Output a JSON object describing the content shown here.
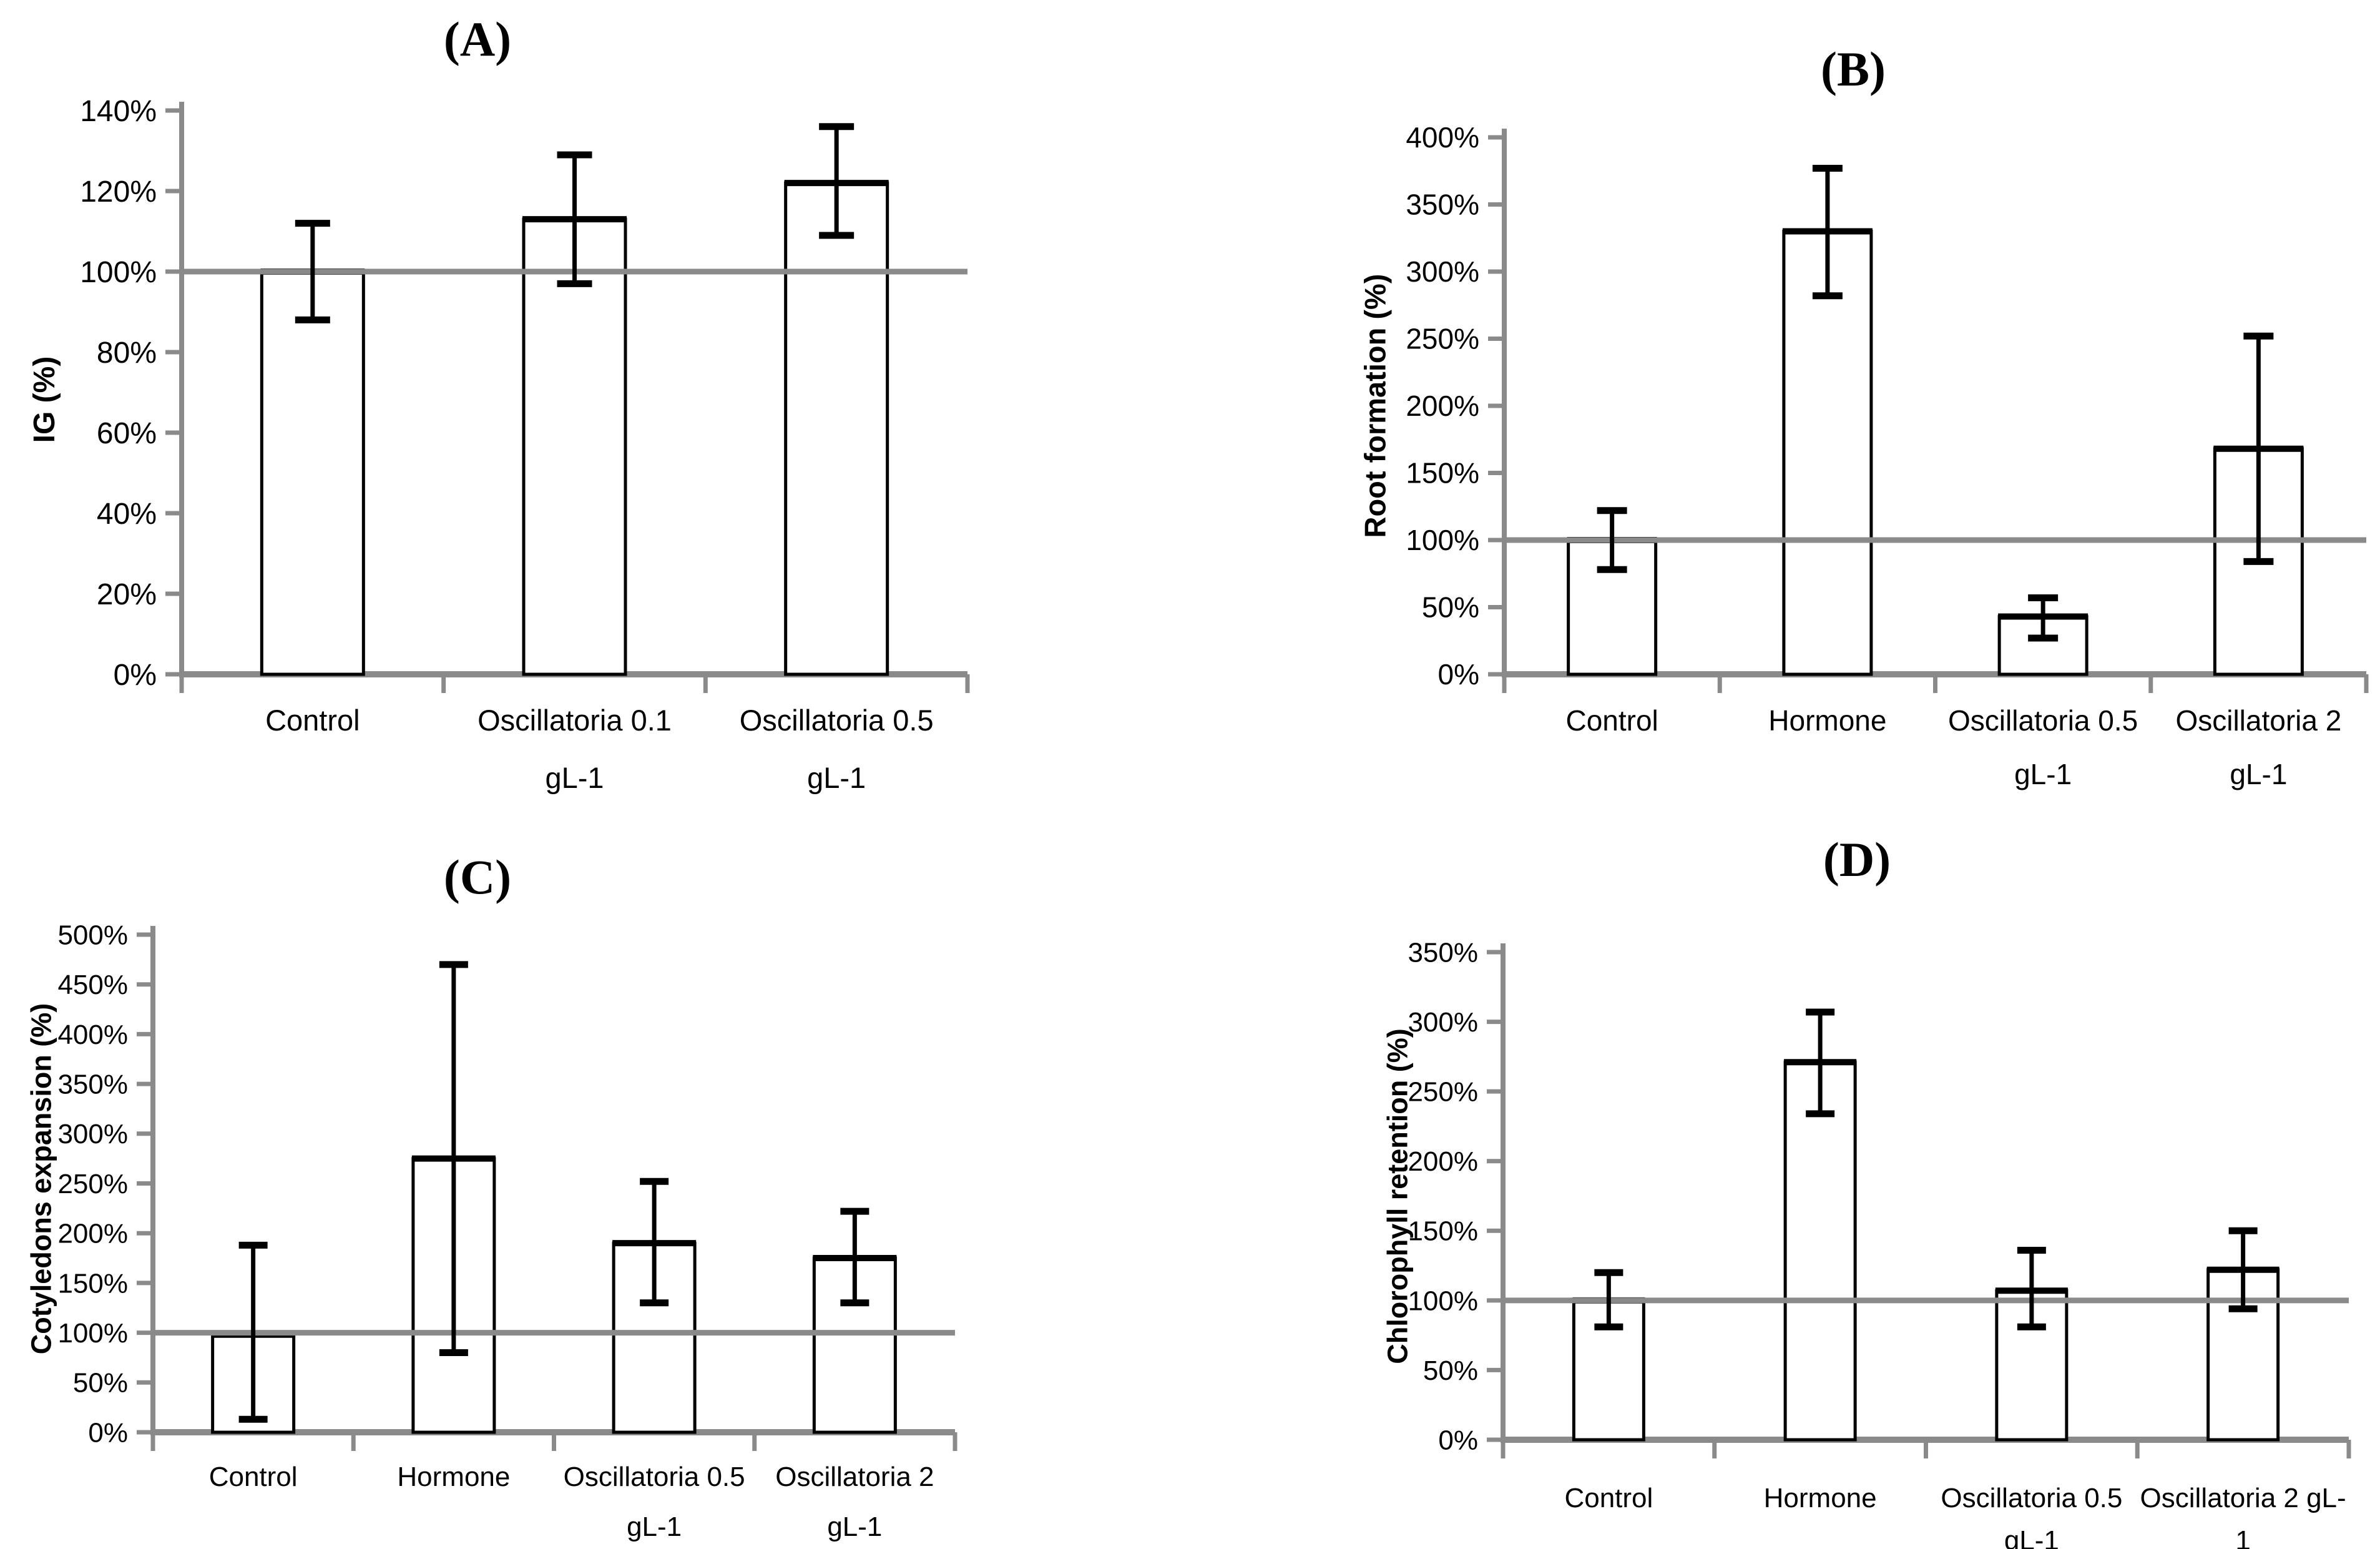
{
  "colors": {
    "axis_gray": "#8a8a8a",
    "reference_line_gray": "#8a8a8a",
    "bar_fill": "#ffffff",
    "bar_stroke": "#000000",
    "error_bar": "#000000",
    "text": "#000000",
    "background": "#ffffff"
  },
  "chart_data": [
    {
      "type": "bar",
      "title": "(A)",
      "ylabel": "IG (%)",
      "categories": [
        "Control",
        "Oscillatoria 0.1 gL-1",
        "Oscillatoria 0.5 gL-1"
      ],
      "category_lines": [
        [
          "Control"
        ],
        [
          "Oscillatoria 0.1",
          "gL-1"
        ],
        [
          "Oscillatoria 0.5",
          "gL-1"
        ]
      ],
      "values": [
        100,
        113,
        122
      ],
      "error_low": [
        88,
        97,
        109
      ],
      "error_high": [
        112,
        129,
        136
      ],
      "ylim": [
        0,
        140
      ],
      "ytick_step": 20,
      "ytick_suffix": "%",
      "reference_line": 100,
      "grid": false,
      "legend": null
    },
    {
      "type": "bar",
      "title": "(B)",
      "ylabel": "Root formation (%)",
      "categories": [
        "Control",
        "Hormone",
        "Oscillatoria 0.5 gL-1",
        "Oscillatoria 2 gL-1"
      ],
      "category_lines": [
        [
          "Control"
        ],
        [
          "Hormone"
        ],
        [
          "Oscillatoria 0.5",
          "gL-1"
        ],
        [
          "Oscillatoria 2",
          "gL-1"
        ]
      ],
      "values": [
        100,
        330,
        43,
        168
      ],
      "error_low": [
        78,
        282,
        27,
        84
      ],
      "error_high": [
        122,
        377,
        57,
        252
      ],
      "ylim": [
        0,
        400
      ],
      "ytick_step": 50,
      "ytick_suffix": "%",
      "reference_line": 100,
      "grid": false,
      "legend": null
    },
    {
      "type": "bar",
      "title": "(C)",
      "ylabel": "Cotyledons expansion (%)",
      "categories": [
        "Control",
        "Hormone",
        "Oscillatoria 0.5 gL-1",
        "Oscillatoria 2 gL-1"
      ],
      "category_lines": [
        [
          "Control"
        ],
        [
          "Hormone"
        ],
        [
          "Oscillatoria 0.5",
          "gL-1"
        ],
        [
          "Oscillatoria 2",
          "gL-1"
        ]
      ],
      "values": [
        98,
        275,
        190,
        175
      ],
      "error_low": [
        13,
        80,
        130,
        130
      ],
      "error_high": [
        188,
        470,
        252,
        222
      ],
      "ylim": [
        0,
        500
      ],
      "ytick_step": 50,
      "ytick_suffix": "%",
      "reference_line": 100,
      "grid": false,
      "legend": null
    },
    {
      "type": "bar",
      "title": "(D)",
      "ylabel": "Chlorophyll retention (%)",
      "categories": [
        "Control",
        "Hormone",
        "Oscillatoria 0.5 gL-1",
        "Oscillatoria 2 gL-1"
      ],
      "category_lines": [
        [
          "Control"
        ],
        [
          "Hormone"
        ],
        [
          "Oscillatoria 0.5",
          "gL-1"
        ],
        [
          "Oscillatoria 2 gL-",
          "1"
        ]
      ],
      "values": [
        100,
        271,
        107,
        122
      ],
      "error_low": [
        81,
        234,
        81,
        94
      ],
      "error_high": [
        120,
        307,
        136,
        150
      ],
      "ylim": [
        0,
        350
      ],
      "ytick_step": 50,
      "ytick_suffix": "%",
      "reference_line": 100,
      "grid": false,
      "legend": null
    }
  ]
}
